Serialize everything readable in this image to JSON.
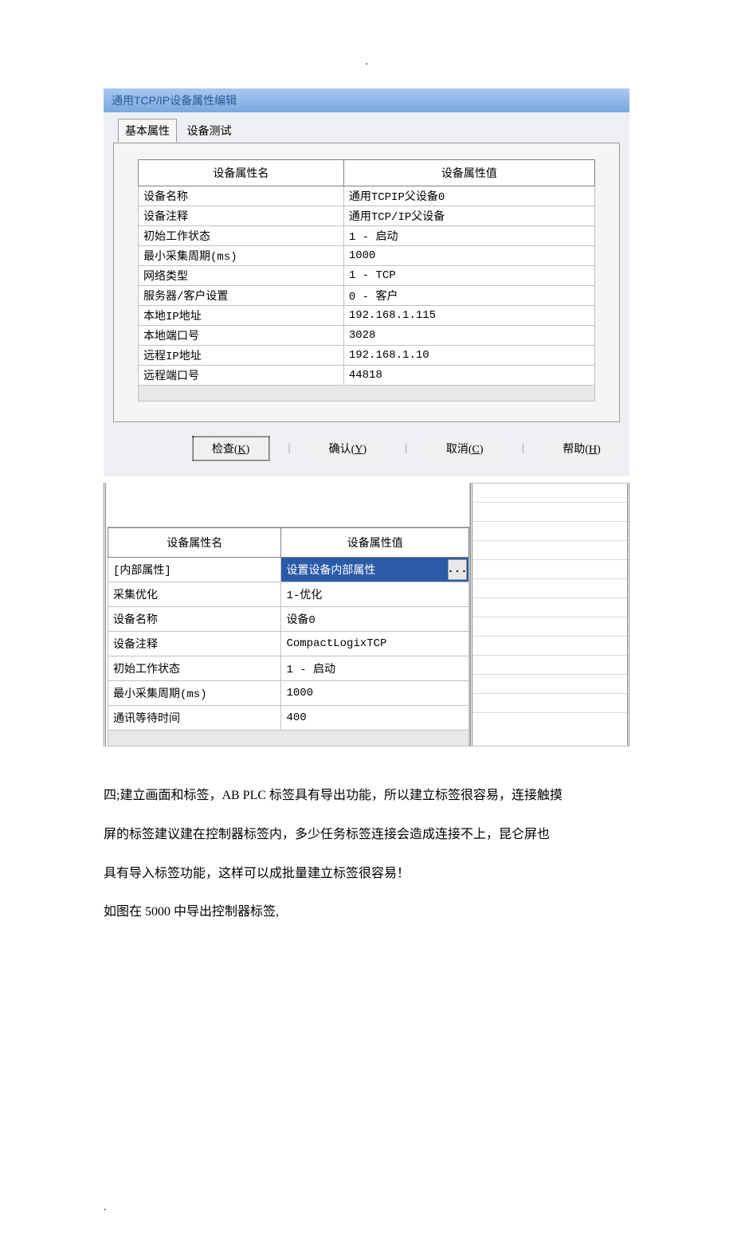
{
  "header_dot": ".",
  "dialog": {
    "title": "通用TCP/IP设备属性编辑",
    "tabs": [
      {
        "label": "基本属性",
        "active": true
      },
      {
        "label": "设备测试",
        "active": false
      }
    ],
    "table": {
      "headers": {
        "name": "设备属性名",
        "value": "设备属性值"
      },
      "rows": [
        {
          "name": "设备名称",
          "value": "通用TCPIP父设备0"
        },
        {
          "name": "设备注释",
          "value": "通用TCP/IP父设备"
        },
        {
          "name": "初始工作状态",
          "value": "1 - 启动"
        },
        {
          "name": "最小采集周期(ms)",
          "value": "1000"
        },
        {
          "name": "网络类型",
          "value": "1 - TCP"
        },
        {
          "name": "服务器/客户设置",
          "value": "0 - 客户"
        },
        {
          "name": "本地IP地址",
          "value": "192.168.1.115"
        },
        {
          "name": "本地端口号",
          "value": "3028"
        },
        {
          "name": "远程IP地址",
          "value": "192.168.1.10"
        },
        {
          "name": "远程端口号",
          "value": "44818"
        }
      ]
    },
    "buttons": {
      "check": "检查(K)",
      "ok": "确认(Y)",
      "cancel": "取消(C)",
      "help": "帮助(H)"
    }
  },
  "table2": {
    "headers": {
      "name": "设备属性名",
      "value": "设备属性值"
    },
    "rows": [
      {
        "name": "[内部属性]",
        "value": "设置设备内部属性",
        "selected": true
      },
      {
        "name": "采集优化",
        "value": "1-优化"
      },
      {
        "name": "设备名称",
        "value": "设备0"
      },
      {
        "name": "设备注释",
        "value": "CompactLogixTCP"
      },
      {
        "name": "初始工作状态",
        "value": "1 - 启动"
      },
      {
        "name": "最小采集周期(ms)",
        "value": "1000"
      },
      {
        "name": "通讯等待时间",
        "value": "400"
      }
    ],
    "ellipsis": "..."
  },
  "paragraphs": {
    "p1": "四;建立画面和标签，AB PLC 标签具有导出功能，所以建立标签很容易，连接触摸",
    "p2": "屏的标签建议建在控制器标签内，多少任务标签连接会造成连接不上，昆仑屏也",
    "p3": "具有导入标签功能，这样可以成批量建立标签很容易！",
    "p4": "如图在 5000 中导出控制器标签,"
  },
  "footer_dot": "."
}
